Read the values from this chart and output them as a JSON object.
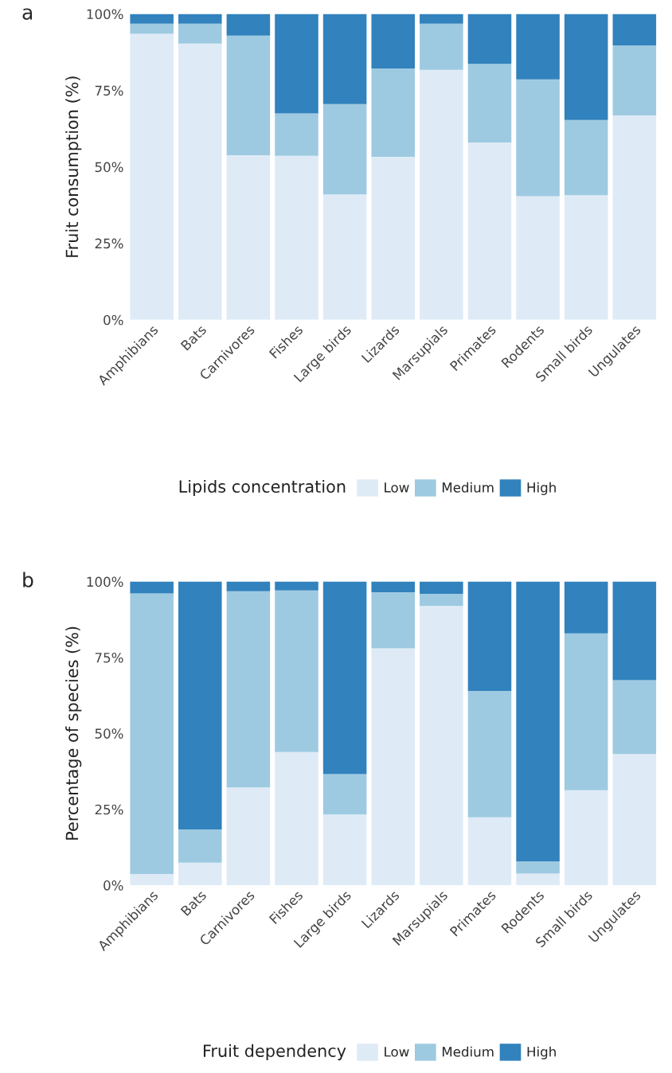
{
  "chart_data": [
    {
      "type": "bar",
      "title": "a",
      "ylabel": "Fruit consumption (%)",
      "legend_title": "Lipids concentration",
      "stacked": true,
      "legend": "bottom",
      "grid": false,
      "categories": [
        "Amphibians",
        "Bats",
        "Carnivores",
        "Fishes",
        "Large birds",
        "Lizards",
        "Marsupials",
        "Primates",
        "Rodents",
        "Small birds",
        "Ungulates"
      ],
      "ylim": [
        0,
        100
      ],
      "yticks": [
        {
          "value": 0,
          "label": "0%"
        },
        {
          "value": 25,
          "label": "25%"
        },
        {
          "value": 50,
          "label": "50%"
        },
        {
          "value": 75,
          "label": "75%"
        },
        {
          "value": 100,
          "label": "100%"
        }
      ],
      "series": [
        {
          "name": "Low",
          "color": "#deebf7",
          "values": [
            93.5,
            90.3,
            53.8,
            53.6,
            41.0,
            53.3,
            81.7,
            58.0,
            40.4,
            40.7,
            66.8
          ]
        },
        {
          "name": "Medium",
          "color": "#9ecae1",
          "values": [
            3.3,
            6.5,
            39.1,
            13.9,
            29.5,
            28.9,
            15.1,
            25.7,
            38.2,
            24.6,
            22.9
          ]
        },
        {
          "name": "High",
          "color": "#3182bd",
          "values": [
            3.2,
            3.2,
            7.1,
            32.5,
            29.5,
            17.8,
            3.2,
            16.3,
            21.4,
            34.7,
            10.3
          ]
        }
      ]
    },
    {
      "type": "bar",
      "title": "b",
      "ylabel": "Percentage of species (%)",
      "legend_title": "Fruit dependency",
      "stacked": true,
      "legend": "bottom",
      "grid": false,
      "categories": [
        "Amphibians",
        "Bats",
        "Carnivores",
        "Fishes",
        "Large birds",
        "Lizards",
        "Marsupials",
        "Primates",
        "Rodents",
        "Small birds",
        "Ungulates"
      ],
      "ylim": [
        0,
        100
      ],
      "yticks": [
        {
          "value": 0,
          "label": "0%"
        },
        {
          "value": 25,
          "label": "25%"
        },
        {
          "value": 50,
          "label": "50%"
        },
        {
          "value": 75,
          "label": "75%"
        },
        {
          "value": 100,
          "label": "100%"
        }
      ],
      "series": [
        {
          "name": "Low",
          "color": "#deebf7",
          "values": [
            3.7,
            7.4,
            32.2,
            43.9,
            23.3,
            78.0,
            92.0,
            22.4,
            3.8,
            31.3,
            43.2
          ]
        },
        {
          "name": "Medium",
          "color": "#9ecae1",
          "values": [
            92.4,
            11.0,
            64.6,
            53.2,
            13.3,
            18.5,
            4.0,
            41.6,
            4.0,
            51.6,
            24.3
          ]
        },
        {
          "name": "High",
          "color": "#3182bd",
          "values": [
            3.9,
            81.6,
            3.2,
            2.9,
            63.4,
            3.5,
            4.0,
            36.0,
            92.2,
            17.1,
            32.5
          ]
        }
      ]
    }
  ]
}
